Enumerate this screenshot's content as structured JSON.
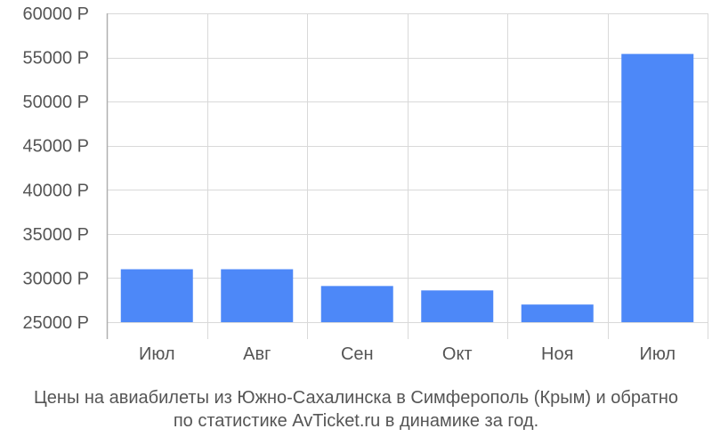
{
  "chart_data": {
    "type": "bar",
    "categories": [
      "Июл",
      "Авг",
      "Сен",
      "Окт",
      "Ноя",
      "Июл"
    ],
    "values": [
      31000,
      31000,
      29100,
      28600,
      27000,
      55400
    ],
    "ylim": [
      25000,
      60000
    ],
    "y_ticks": [
      25000,
      30000,
      35000,
      40000,
      45000,
      50000,
      55000,
      60000
    ],
    "y_tick_labels": [
      "25000 Р",
      "30000 Р",
      "35000 Р",
      "40000 Р",
      "45000 Р",
      "50000 Р",
      "55000 Р",
      "60000 Р"
    ],
    "grid": true,
    "bar_color": "#4d88f8",
    "grid_color": "#d9d9d9",
    "axis_color": "#b0b0b0",
    "text_color": "#555555"
  },
  "caption": {
    "line1": "Цены на авиабилеты из Южно-Сахалинска в Симферополь (Крым) и обратно",
    "line2": "по статистике AvTicket.ru в динамике за год."
  }
}
